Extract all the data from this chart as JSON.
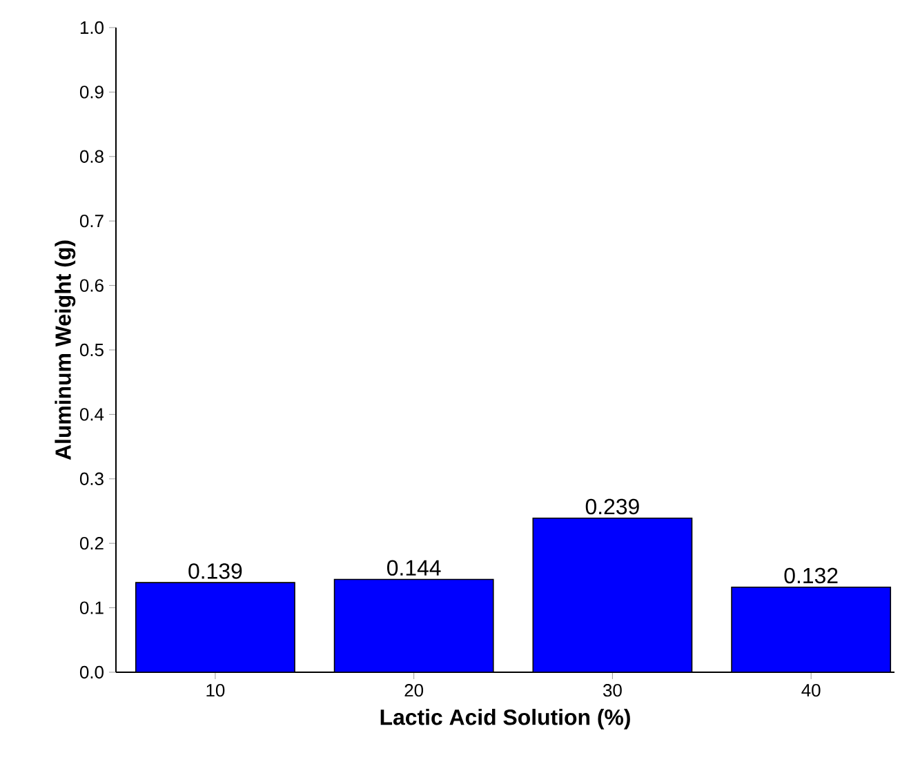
{
  "chart_data": {
    "type": "bar",
    "xlabel": "Lactic Acid Solution (%)",
    "ylabel": "Aluminum Weight (g)",
    "categories": [
      "10",
      "20",
      "30",
      "40"
    ],
    "values": [
      0.139,
      0.144,
      0.239,
      0.132
    ],
    "color": "#0000ff",
    "ylim": [
      0,
      1.0
    ],
    "yticks": [
      {
        "value": 0,
        "label": "0.0"
      },
      {
        "value": 0.1,
        "label": "0.1"
      },
      {
        "value": 0.2,
        "label": "0.2"
      },
      {
        "value": 0.3,
        "label": "0.3"
      },
      {
        "value": 0.4,
        "label": "0.4"
      },
      {
        "value": 0.5,
        "label": "0.5"
      },
      {
        "value": 0.6,
        "label": "0.6"
      },
      {
        "value": 0.7,
        "label": "0.7"
      },
      {
        "value": 0.8,
        "label": "0.8"
      },
      {
        "value": 0.9,
        "label": "0.9"
      },
      {
        "value": 1.0,
        "label": "1.0"
      }
    ],
    "data_labels": true
  }
}
